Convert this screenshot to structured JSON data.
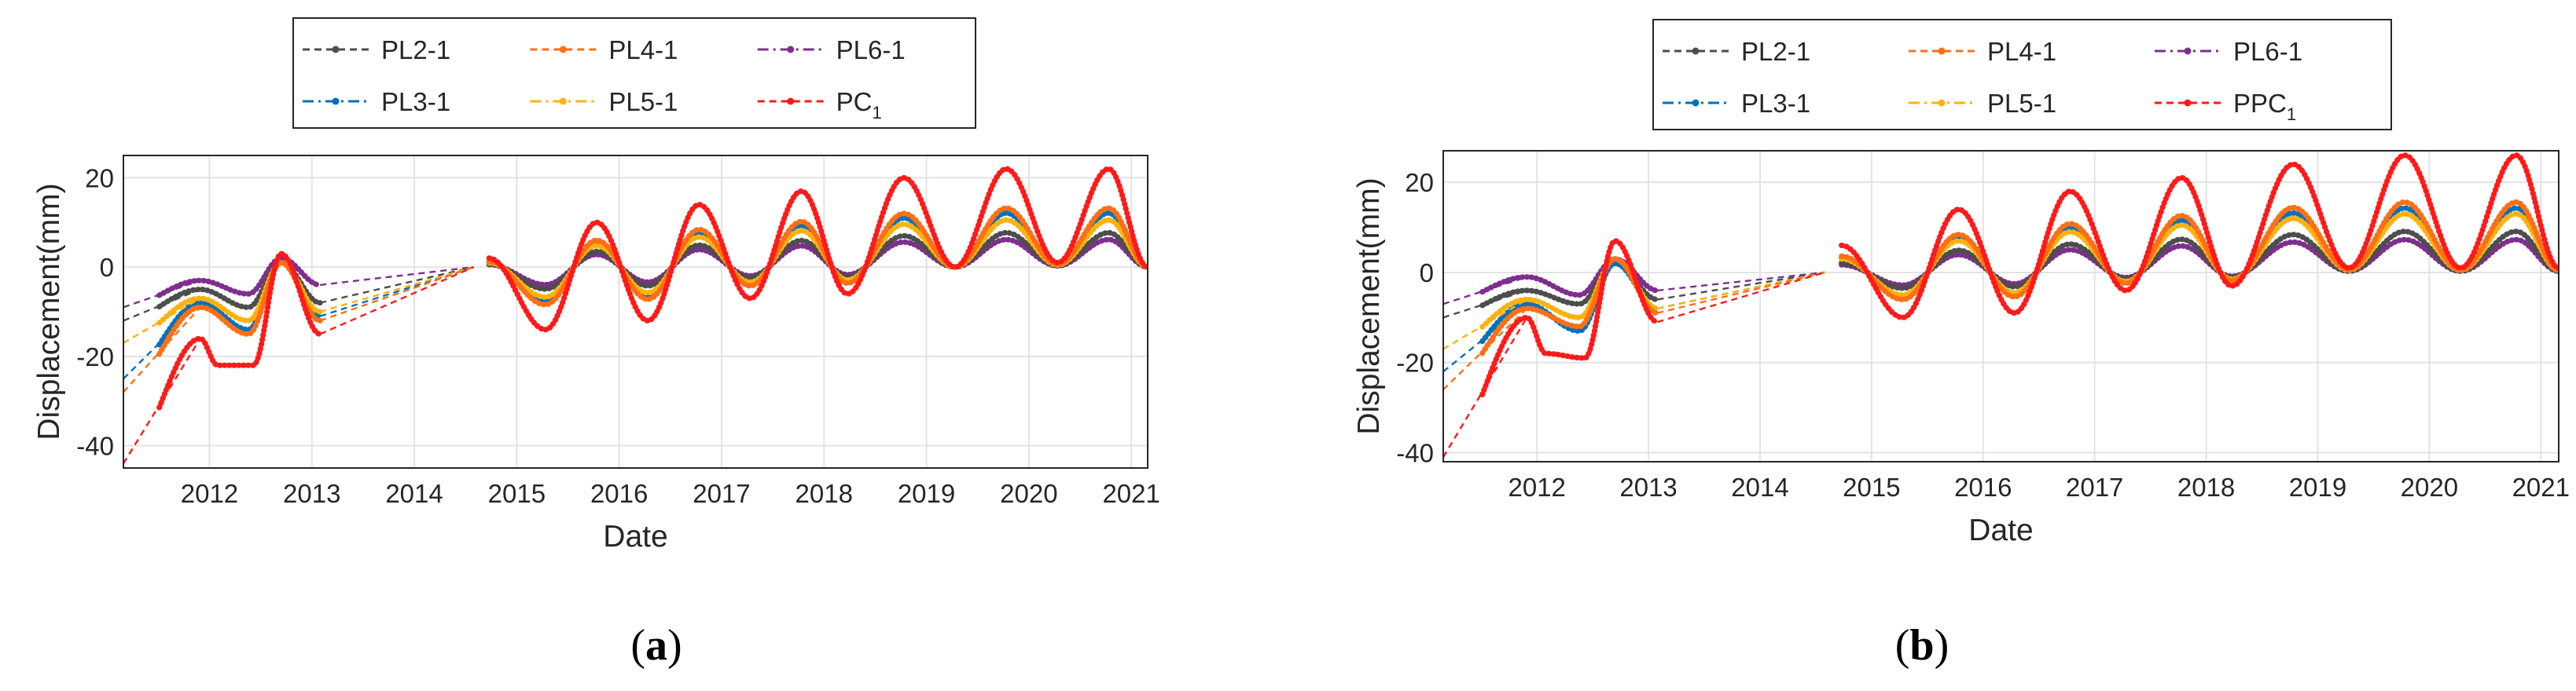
{
  "chart_data": [
    {
      "id": "a",
      "type": "line",
      "caption_letter": "a",
      "caption_open": "(",
      "caption_close": ")",
      "xlabel": "Date",
      "ylabel": "Displacement(mm)",
      "xlim": [
        2011.58,
        2021.58
      ],
      "ylim": [
        -45,
        25
      ],
      "xticks": [
        "2012",
        "2013",
        "2014",
        "2015",
        "2016",
        "2017",
        "2018",
        "2019",
        "2020",
        "2021"
      ],
      "yticks": [
        "20",
        "0",
        "-20",
        "-40"
      ],
      "ytick_values": [
        20,
        0,
        -20,
        -40
      ],
      "grid": true,
      "legend": {
        "placement": "top-center",
        "entries": [
          {
            "name": "PL2-1",
            "color": "#4d4d4d",
            "style": "dash"
          },
          {
            "name": "PL4-1",
            "color": "#ff6f14",
            "style": "dash"
          },
          {
            "name": "PL6-1",
            "color": "#7e2f8e",
            "style": "dashdot"
          },
          {
            "name": "PL3-1",
            "color": "#0072bd",
            "style": "dashdot"
          },
          {
            "name": "PL5-1",
            "color": "#ffb20f",
            "style": "dashdot"
          },
          {
            "name": "PC",
            "sub": "1",
            "color": "#ff1a1a",
            "style": "dash"
          }
        ]
      },
      "series": [
        {
          "name": "PL6-1",
          "color": "#7e2f8e",
          "ampFactor": 0.28,
          "gapEnd": -6,
          "start": -9,
          "pre": [
            [
              2012.33,
              -3
            ],
            [
              2012.8,
              -6
            ],
            [
              2013.12,
              2
            ],
            [
              2013.5,
              -4
            ]
          ]
        },
        {
          "name": "PL2-1",
          "color": "#4d4d4d",
          "ampFactor": 0.35,
          "gapEnd": -9,
          "start": -12,
          "pre": [
            [
              2012.33,
              -5
            ],
            [
              2012.8,
              -9
            ],
            [
              2013.12,
              1
            ],
            [
              2013.5,
              -8
            ]
          ]
        },
        {
          "name": "PL3-1",
          "color": "#0072bd",
          "ampFactor": 0.55,
          "gapEnd": -12,
          "start": -25,
          "pre": [
            [
              2012.33,
              -8
            ],
            [
              2012.8,
              -14
            ],
            [
              2013.12,
              1
            ],
            [
              2013.5,
              -11
            ]
          ]
        },
        {
          "name": "PL5-1",
          "color": "#ffb20f",
          "ampFactor": 0.48,
          "gapEnd": -11,
          "start": -17,
          "pre": [
            [
              2012.33,
              -7
            ],
            [
              2012.8,
              -12
            ],
            [
              2013.12,
              1
            ],
            [
              2013.5,
              -10
            ]
          ]
        },
        {
          "name": "PL4-1",
          "color": "#ff6f14",
          "ampFactor": 0.6,
          "gapEnd": -13,
          "start": -28,
          "pre": [
            [
              2012.33,
              -9
            ],
            [
              2012.8,
              -15
            ],
            [
              2013.12,
              1
            ],
            [
              2013.5,
              -12
            ]
          ]
        },
        {
          "name": "PC1",
          "color": "#ff1a1a",
          "ampFactor": 1.0,
          "gapEnd": -15,
          "start": -44,
          "pre": [
            [
              2012.33,
              -16
            ],
            [
              2012.5,
              -22
            ],
            [
              2012.85,
              -22
            ],
            [
              2013.12,
              3
            ],
            [
              2013.5,
              -15
            ]
          ]
        }
      ],
      "seasonal_peaks": [
        [
          2015.15,
          2
        ],
        [
          2016.2,
          10
        ],
        [
          2017.2,
          14
        ],
        [
          2018.2,
          17
        ],
        [
          2019.2,
          20
        ],
        [
          2020.2,
          22
        ],
        [
          2021.2,
          22
        ]
      ],
      "seasonal_troughs": [
        [
          2015.7,
          -14
        ],
        [
          2016.7,
          -12
        ],
        [
          2017.7,
          -7
        ],
        [
          2018.65,
          -6
        ],
        [
          2019.7,
          0
        ],
        [
          2020.7,
          1
        ],
        [
          2021.58,
          0
        ]
      ]
    },
    {
      "id": "b",
      "type": "line",
      "caption_letter": "b",
      "caption_open": "(",
      "caption_close": ")",
      "xlabel": "Date",
      "ylabel": "Displacement(mm)",
      "xlim": [
        2011.58,
        2021.58
      ],
      "ylim": [
        -42,
        27
      ],
      "xticks": [
        "2012",
        "2013",
        "2014",
        "2015",
        "2016",
        "2017",
        "2018",
        "2019",
        "2020",
        "2021"
      ],
      "yticks": [
        "20",
        "0",
        "-20",
        "-40"
      ],
      "ytick_values": [
        20,
        0,
        -20,
        -40
      ],
      "grid": true,
      "legend": {
        "placement": "top-center",
        "entries": [
          {
            "name": "PL2-1",
            "color": "#4d4d4d",
            "style": "dash"
          },
          {
            "name": "PL4-1",
            "color": "#ff6f14",
            "style": "dash"
          },
          {
            "name": "PL6-1",
            "color": "#7e2f8e",
            "style": "dashdot"
          },
          {
            "name": "PL3-1",
            "color": "#0072bd",
            "style": "dashdot"
          },
          {
            "name": "PL5-1",
            "color": "#ffb20f",
            "style": "dashdot"
          },
          {
            "name": "PPC",
            "sub": "1",
            "color": "#ff1a1a",
            "style": "dash"
          }
        ]
      },
      "series": [
        {
          "name": "PL6-1",
          "color": "#7e2f8e",
          "ampFactor": 0.28,
          "gapEnd": -5,
          "start": -7,
          "pre": [
            [
              2012.33,
              -1
            ],
            [
              2012.8,
              -5
            ],
            [
              2013.12,
              3
            ],
            [
              2013.5,
              -4
            ]
          ]
        },
        {
          "name": "PL2-1",
          "color": "#4d4d4d",
          "ampFactor": 0.35,
          "gapEnd": -6,
          "start": -10,
          "pre": [
            [
              2012.33,
              -4
            ],
            [
              2012.8,
              -7
            ],
            [
              2013.12,
              2
            ],
            [
              2013.5,
              -6
            ]
          ]
        },
        {
          "name": "PL3-1",
          "color": "#0072bd",
          "ampFactor": 0.55,
          "gapEnd": -8,
          "start": -22,
          "pre": [
            [
              2012.33,
              -7
            ],
            [
              2012.8,
              -13
            ],
            [
              2013.12,
              2
            ],
            [
              2013.5,
              -8
            ]
          ]
        },
        {
          "name": "PL5-1",
          "color": "#ffb20f",
          "ampFactor": 0.5,
          "gapEnd": -8,
          "start": -17,
          "pre": [
            [
              2012.33,
              -6
            ],
            [
              2012.8,
              -10
            ],
            [
              2013.12,
              3
            ],
            [
              2013.5,
              -8
            ]
          ]
        },
        {
          "name": "PL4-1",
          "color": "#ff6f14",
          "ampFactor": 0.6,
          "gapEnd": -9,
          "start": -26,
          "pre": [
            [
              2012.33,
              -8
            ],
            [
              2012.8,
              -12
            ],
            [
              2013.12,
              3
            ],
            [
              2013.5,
              -9
            ]
          ]
        },
        {
          "name": "PPC1",
          "color": "#ff1a1a",
          "ampFactor": 1.0,
          "gapEnd": -11,
          "start": -41,
          "pre": [
            [
              2012.33,
              -10
            ],
            [
              2012.5,
              -18
            ],
            [
              2012.85,
              -19
            ],
            [
              2013.12,
              7
            ],
            [
              2013.5,
              -11
            ]
          ]
        }
      ],
      "seasonal_peaks": [
        [
          2015.15,
          6
        ],
        [
          2016.2,
          14
        ],
        [
          2017.2,
          18
        ],
        [
          2018.2,
          21
        ],
        [
          2019.2,
          24
        ],
        [
          2020.2,
          26
        ],
        [
          2021.2,
          26
        ]
      ],
      "seasonal_troughs": [
        [
          2015.7,
          -10
        ],
        [
          2016.7,
          -9
        ],
        [
          2017.7,
          -4
        ],
        [
          2018.65,
          -3
        ],
        [
          2019.7,
          1
        ],
        [
          2020.7,
          1
        ],
        [
          2021.58,
          1
        ]
      ]
    }
  ]
}
